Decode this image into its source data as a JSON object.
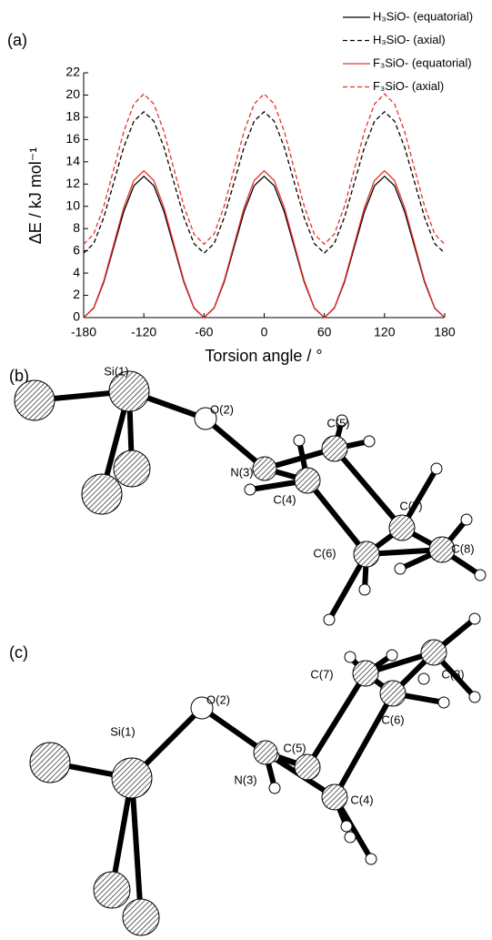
{
  "chart_data": {
    "type": "line",
    "panel_label": "(a)",
    "x_label": "Torsion angle / °",
    "y_label": "ΔE / kJ mol⁻¹",
    "x": [
      -180,
      -170,
      -160,
      -150,
      -140,
      -130,
      -120,
      -110,
      -100,
      -90,
      -80,
      -70,
      -60,
      -50,
      -40,
      -30,
      -20,
      -10,
      0,
      10,
      20,
      30,
      40,
      50,
      60,
      70,
      80,
      90,
      100,
      110,
      120,
      130,
      140,
      150,
      160,
      170,
      180
    ],
    "xlim": [
      -180,
      180
    ],
    "xticks": [
      -180,
      -120,
      -60,
      0,
      60,
      120,
      180
    ],
    "ylim": [
      0,
      22
    ],
    "yticks": [
      0,
      2,
      4,
      6,
      8,
      10,
      12,
      14,
      16,
      18,
      20,
      22
    ],
    "legend": "upper right",
    "grid": false,
    "series": [
      {
        "name": "H₃SiO- (equatorial)",
        "color": "#000000",
        "style": "solid",
        "values": [
          0,
          0.85,
          3.18,
          6.35,
          9.53,
          11.85,
          12.7,
          11.85,
          9.53,
          6.35,
          3.18,
          0.85,
          0,
          0.85,
          3.18,
          6.35,
          9.53,
          11.85,
          12.7,
          11.85,
          9.53,
          6.35,
          3.18,
          0.85,
          0,
          0.85,
          3.18,
          6.35,
          9.53,
          11.85,
          12.7,
          11.85,
          9.53,
          6.35,
          3.18,
          0.85,
          0
        ]
      },
      {
        "name": "H₃SiO- (axial)",
        "color": "#000000",
        "style": "dashed",
        "values": [
          5.8,
          6.65,
          8.98,
          12.15,
          15.33,
          17.65,
          18.5,
          17.65,
          15.33,
          12.15,
          8.98,
          6.65,
          5.8,
          6.65,
          8.98,
          12.15,
          15.33,
          17.65,
          18.5,
          17.65,
          15.33,
          12.15,
          8.98,
          6.65,
          5.8,
          6.65,
          8.98,
          12.15,
          15.33,
          17.65,
          18.5,
          17.65,
          15.33,
          12.15,
          8.98,
          6.65,
          5.8
        ]
      },
      {
        "name": "F₃SiO- (equatorial)",
        "color": "#e8302a",
        "style": "solid",
        "values": [
          0,
          0.88,
          3.3,
          6.6,
          9.9,
          12.32,
          13.2,
          12.32,
          9.9,
          6.6,
          3.3,
          0.88,
          0,
          0.88,
          3.3,
          6.6,
          9.9,
          12.32,
          13.2,
          12.32,
          9.9,
          6.6,
          3.3,
          0.88,
          0,
          0.88,
          3.3,
          6.6,
          9.9,
          12.32,
          13.2,
          12.32,
          9.9,
          6.6,
          3.3,
          0.88,
          0
        ]
      },
      {
        "name": "F₃SiO- (axial)",
        "color": "#e8302a",
        "style": "dashed",
        "values": [
          6.6,
          7.5,
          9.98,
          13.35,
          16.73,
          19.2,
          20.1,
          19.2,
          16.73,
          13.35,
          9.98,
          7.5,
          6.6,
          7.5,
          9.98,
          13.35,
          16.73,
          19.2,
          20.1,
          19.2,
          16.73,
          13.35,
          9.98,
          7.5,
          6.6,
          7.5,
          9.98,
          13.35,
          16.73,
          19.2,
          20.1,
          19.2,
          16.73,
          13.35,
          9.98,
          7.5,
          6.6
        ]
      }
    ]
  },
  "diagrams": [
    {
      "label": "(b)",
      "atoms": [
        "Si(1)",
        "O(2)",
        "N(3)",
        "C(4)",
        "C(5)",
        "C(6)",
        "C(7)",
        "C(8)"
      ]
    },
    {
      "label": "(c)",
      "atoms": [
        "Si(1)",
        "O(2)",
        "N(3)",
        "C(4)",
        "C(5)",
        "C(6)",
        "C(7)",
        "C(8)"
      ]
    }
  ]
}
